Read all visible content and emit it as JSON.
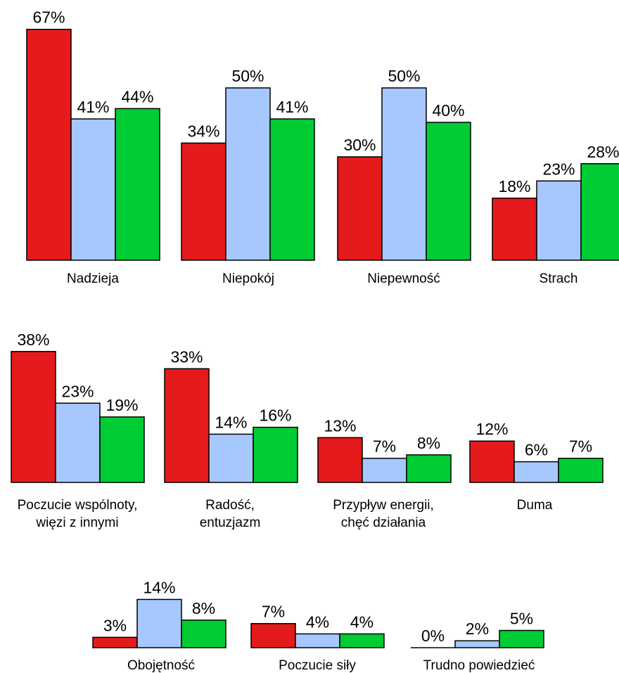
{
  "chart_data": {
    "type": "bar",
    "value_format": "percent",
    "series_colors": [
      "#e41a1c",
      "#a6c8ff",
      "#00cc33"
    ],
    "groups": [
      {
        "label_lines": [
          "Nadzieja"
        ],
        "values": [
          67,
          41,
          44
        ]
      },
      {
        "label_lines": [
          "Niepokój"
        ],
        "values": [
          34,
          50,
          41
        ]
      },
      {
        "label_lines": [
          "Niepewność"
        ],
        "values": [
          30,
          50,
          40
        ]
      },
      {
        "label_lines": [
          "Strach"
        ],
        "values": [
          18,
          23,
          28
        ]
      },
      {
        "label_lines": [
          "Poczucie wspólnoty,",
          "więzi z innymi"
        ],
        "values": [
          38,
          23,
          19
        ]
      },
      {
        "label_lines": [
          "Radość,",
          "entuzjazm"
        ],
        "values": [
          33,
          14,
          16
        ]
      },
      {
        "label_lines": [
          "Przypływ energii,",
          "chęć działania"
        ],
        "values": [
          13,
          7,
          8
        ]
      },
      {
        "label_lines": [
          "Duma"
        ],
        "values": [
          12,
          6,
          7
        ]
      },
      {
        "label_lines": [
          "Obojętność"
        ],
        "values": [
          3,
          14,
          8
        ]
      },
      {
        "label_lines": [
          "Poczucie siły"
        ],
        "values": [
          7,
          4,
          4
        ]
      },
      {
        "label_lines": [
          "Trudno powiedzieć"
        ],
        "values": [
          0,
          2,
          5
        ]
      }
    ]
  }
}
